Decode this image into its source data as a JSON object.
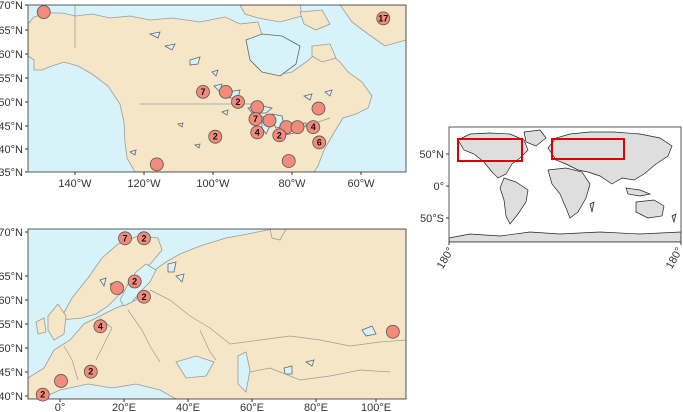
{
  "colors": {
    "land": "#f5e6c8",
    "water": "#d7f2f8",
    "border": "#9b9b9b",
    "lake": "#666666",
    "marker": "#f28b7b",
    "marker_stroke": "#555555",
    "world_land": "#dedede",
    "highlight": "#e00000"
  },
  "north_america": {
    "x_ticks": [
      "140°W",
      "120°W",
      "100°W",
      "80°W",
      "60°W"
    ],
    "y_ticks": [
      "35°N",
      "40°N",
      "45°N",
      "50°N",
      "55°N",
      "60°N",
      "65°N",
      "70°N"
    ],
    "points": [
      {
        "lon": -150.5,
        "lat": 68.5,
        "count": ""
      },
      {
        "lon": -53.5,
        "lat": 67.2,
        "count": "17"
      },
      {
        "lon": -105,
        "lat": 51.8,
        "count": "7"
      },
      {
        "lon": -98.5,
        "lat": 51.8,
        "count": ""
      },
      {
        "lon": -95,
        "lat": 49.7,
        "count": "2"
      },
      {
        "lon": -89.5,
        "lat": 48.6,
        "count": ""
      },
      {
        "lon": -72,
        "lat": 48.3,
        "count": ""
      },
      {
        "lon": -90,
        "lat": 46.1,
        "count": "7"
      },
      {
        "lon": -86,
        "lat": 45.8,
        "count": ""
      },
      {
        "lon": -81.2,
        "lat": 44.4,
        "count": ""
      },
      {
        "lon": -78,
        "lat": 44.4,
        "count": ""
      },
      {
        "lon": -73.5,
        "lat": 44.4,
        "count": "4"
      },
      {
        "lon": -89.5,
        "lat": 43.3,
        "count": "4"
      },
      {
        "lon": -83.2,
        "lat": 42.7,
        "count": "2"
      },
      {
        "lon": -101.5,
        "lat": 42.4,
        "count": "2"
      },
      {
        "lon": -71.8,
        "lat": 41.2,
        "count": "6"
      },
      {
        "lon": -118.2,
        "lat": 36.6,
        "count": ""
      },
      {
        "lon": -80.5,
        "lat": 37.3,
        "count": ""
      }
    ]
  },
  "europe_asia": {
    "x_ticks": [
      "0°",
      "20°E",
      "40°E",
      "60°E",
      "80°E",
      "100°E"
    ],
    "y_ticks": [
      "40°N",
      "45°N",
      "50°N",
      "55°N",
      "60°N",
      "65°N",
      "70°N"
    ],
    "points": [
      {
        "lon": 20.3,
        "lat": 68.9,
        "count": "7"
      },
      {
        "lon": 26.2,
        "lat": 68.9,
        "count": "2"
      },
      {
        "lon": 23.3,
        "lat": 61.0,
        "count": "2"
      },
      {
        "lon": 17.8,
        "lat": 59.8,
        "count": ""
      },
      {
        "lon": 26.2,
        "lat": 58.2,
        "count": "2"
      },
      {
        "lon": 12.6,
        "lat": 52.8,
        "count": "4"
      },
      {
        "lon": 103.9,
        "lat": 51.8,
        "count": ""
      },
      {
        "lon": 9.6,
        "lat": 44.5,
        "count": "2"
      },
      {
        "lon": 0.3,
        "lat": 42.8,
        "count": ""
      },
      {
        "lon": -5.4,
        "lat": 40.3,
        "count": "2"
      }
    ]
  },
  "world": {
    "y_ticks": [
      "50°N",
      "0°",
      "50°S"
    ],
    "x_ticks": [
      "180°",
      "180°"
    ]
  }
}
